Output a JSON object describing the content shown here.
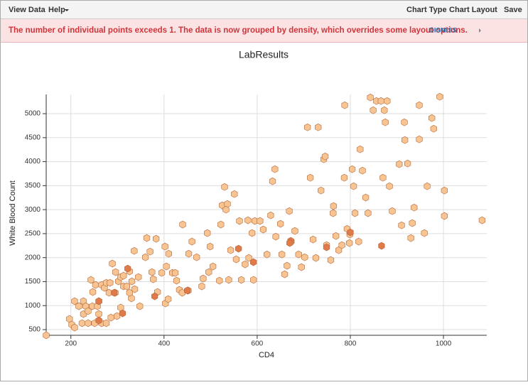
{
  "toolbar": {
    "items": [
      "View Data",
      "Help",
      "Chart Type",
      "Chart Layout",
      "Save"
    ]
  },
  "banner": {
    "message": "The number of individual points exceeds 1. The data is now grouped by density, which overrides some layout options.",
    "action": "DISMISS"
  },
  "chart_data": {
    "type": "scatter",
    "title": "LabResults",
    "xlabel": "CD4",
    "ylabel": "White Blood Count",
    "xlim": [
      147,
      1093
    ],
    "ylim": [
      382,
      5400
    ],
    "xticks": [
      200,
      400,
      600,
      800,
      1000
    ],
    "yticks": [
      500,
      1000,
      1500,
      2000,
      2500,
      3000,
      3500,
      4000,
      4500,
      5000
    ],
    "grid": true,
    "series": [
      {
        "color": "#f8c592",
        "x": [
          147,
          197,
          202,
          208,
          208,
          227,
          217,
          224,
          237,
          251,
          266,
          276,
          232,
          246,
          257,
          227,
          237,
          243,
          247,
          253,
          266,
          260,
          260,
          272,
          276,
          284,
          289,
          282,
          295,
          286,
          299,
          307,
          296,
          302,
          307,
          313,
          320,
          313,
          326,
          330,
          331,
          337,
          326,
          336,
          345,
          348,
          360,
          363,
          370,
          374,
          377,
          383,
          386,
          395,
          402,
          403,
          405,
          409,
          410,
          418,
          424,
          427,
          433,
          439,
          452,
          440,
          453,
          460,
          470,
          481,
          484,
          496,
          493,
          499,
          505,
          519,
          522,
          525,
          530,
          536,
          533,
          543,
          539,
          551,
          555,
          562,
          566,
          574,
          582,
          580,
          592,
          589,
          595,
          606,
          613,
          621,
          629,
          633,
          638,
          640,
          650,
          653,
          659,
          664,
          669,
          673,
          681,
          689,
          695,
          702,
          708,
          714,
          720,
          726,
          731,
          737,
          743,
          746,
          749,
          758,
          763,
          764,
          769,
          775,
          782,
          787,
          793,
          788,
          798,
          799,
          807,
          804,
          810,
          818,
          821,
          826,
          833,
          838,
          843,
          849,
          856,
          866,
          873,
          875,
          870,
          879,
          884,
          890,
          905,
          910,
          916,
          917,
          923,
          930,
          933,
          937,
          948,
          948,
          959,
          965,
          975,
          979,
          992,
          1002,
          1002,
          1083
        ],
        "y": [
          382,
          722,
          604,
          544,
          1092,
          1092,
          988,
          633,
          633,
          633,
          633,
          633,
          988,
          988,
          988,
          825,
          885,
          1536,
          1284,
          1432,
          1432,
          1092,
          825,
          1373,
          1476,
          1476,
          1876,
          1269,
          1269,
          751,
          781,
          959,
          1698,
          1506,
          1595,
          1402,
          1402,
          1624,
          1713,
          1151,
          1506,
          1343,
          1269,
          2141,
          1595,
          988,
          2008,
          2408,
          2126,
          1698,
          1550,
          2393,
          1284,
          1683,
          2231,
          1047,
          1816,
          1136,
          2082,
          1683,
          1683,
          1521,
          1328,
          1269,
          1314,
          2689,
          2082,
          2334,
          2008,
          1402,
          1565,
          1698,
          2512,
          2231,
          1816,
          1521,
          2689,
          3089,
          3473,
          3118,
          2999,
          2156,
          1536,
          3325,
          1964,
          2763,
          1536,
          1861,
          1994,
          2778,
          1536,
          2512,
          2763,
          2763,
          2586,
          2067,
          2881,
          3591,
          3843,
          2438,
          2704,
          2067,
          1654,
          1831,
          2970,
          2334,
          2556,
          2067,
          1802,
          2008,
          4716,
          3665,
          2378,
          1994,
          4716,
          3399,
          4050,
          4109,
          2260,
          1950,
          2926,
          3074,
          2452,
          2156,
          2260,
          3665,
          2600,
          5175,
          2304,
          2482,
          3488,
          3843,
          2926,
          2334,
          4257,
          3813,
          3252,
          2926,
          5338,
          5071,
          5264,
          5264,
          5071,
          4820,
          3665,
          5264,
          3488,
          2970,
          3946,
          2674,
          4820,
          4450,
          3961,
          2408,
          2719,
          3044,
          5175,
          4464,
          2512,
          3488,
          4909,
          4686,
          5353,
          3399,
          2867,
          2778
        ]
      },
      {
        "color": "#e07a4a",
        "x": [
          260,
          260,
          311,
          293,
          322,
          380,
          450,
          560,
          592,
          672,
          749,
          800,
          867,
          670
        ],
        "y": [
          692,
          1092,
          840,
          1269,
          1772,
          1195,
          1314,
          2186,
          1905,
          2349,
          2216,
          2527,
          2246,
          2305
        ]
      }
    ]
  }
}
